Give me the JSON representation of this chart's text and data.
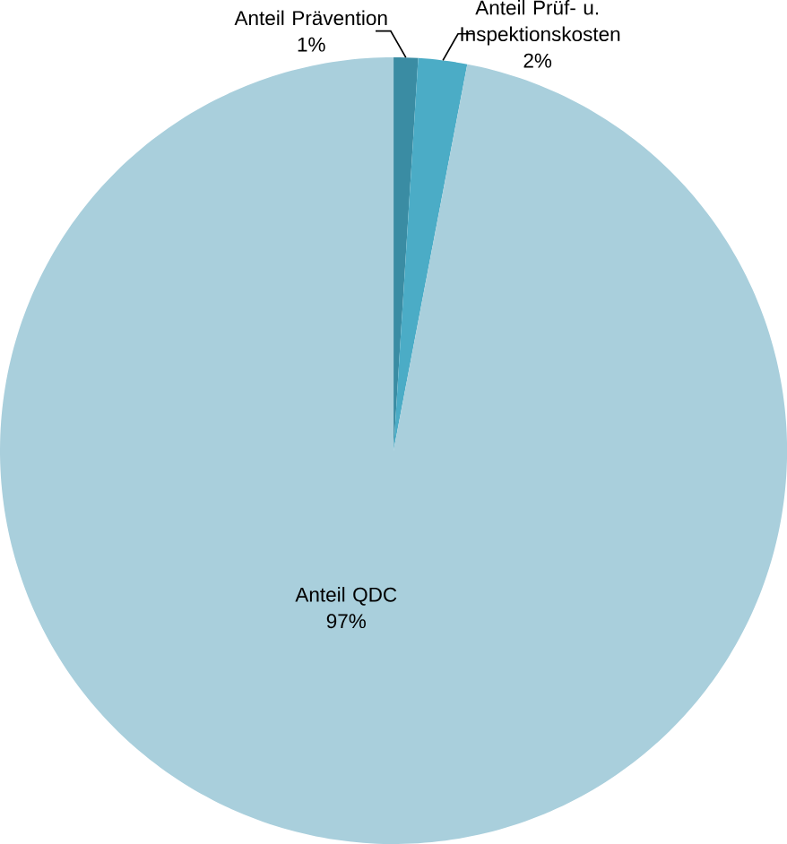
{
  "chart_data": {
    "type": "pie",
    "categories": [
      "Anteil Prävention",
      "Anteil Prüf- u. Inspektionskosten",
      "Anteil QDC"
    ],
    "values": [
      1,
      2,
      97
    ],
    "value_labels": [
      "1%",
      "2%",
      "97%"
    ],
    "colors": [
      "#3a8ca3",
      "#4bacc6",
      "#a9cfdc"
    ]
  }
}
